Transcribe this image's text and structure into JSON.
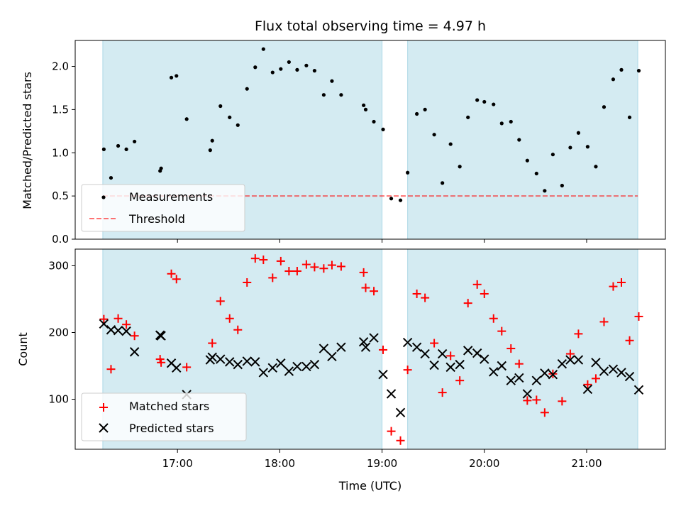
{
  "figure": {
    "title": "Flux total observing time = 4.97 h",
    "xlabel": "Time (UTC)"
  },
  "colors": {
    "band": "#add8e6",
    "measurement": "#000000",
    "threshold": "#ff0000",
    "matched": "#ff0000",
    "predicted": "#000000"
  },
  "chart_data": [
    {
      "type": "scatter",
      "panel": "top",
      "ylabel": "Matched/Predicted stars",
      "x_unit": "hours UTC",
      "xlim": [
        16.0,
        21.77
      ],
      "ylim": [
        0.0,
        2.3
      ],
      "yticks": [
        0.0,
        0.5,
        1.0,
        1.5,
        2.0
      ],
      "ytick_labels": [
        "0.0",
        "0.5",
        "1.0",
        "1.5",
        "2.0"
      ],
      "xticks": [
        17,
        18,
        19,
        20,
        21
      ],
      "shaded_intervals": [
        [
          16.27,
          19.0
        ],
        [
          19.25,
          21.5
        ]
      ],
      "legend": {
        "placement": "lower-left",
        "entries": [
          "Measurements",
          "Threshold"
        ]
      },
      "threshold": {
        "name": "Threshold",
        "y": 0.5,
        "style": "dashed"
      },
      "series": [
        {
          "name": "Measurements",
          "marker": "dot",
          "points": [
            [
              16.28,
              1.04
            ],
            [
              16.35,
              0.71
            ],
            [
              16.42,
              1.08
            ],
            [
              16.5,
              1.04
            ],
            [
              16.58,
              1.13
            ],
            [
              16.83,
              0.79
            ],
            [
              16.84,
              0.82
            ],
            [
              16.94,
              1.87
            ],
            [
              16.99,
              1.89
            ],
            [
              17.09,
              1.39
            ],
            [
              17.32,
              1.03
            ],
            [
              17.34,
              1.14
            ],
            [
              17.42,
              1.54
            ],
            [
              17.51,
              1.41
            ],
            [
              17.59,
              1.32
            ],
            [
              17.68,
              1.74
            ],
            [
              17.76,
              1.99
            ],
            [
              17.84,
              2.2
            ],
            [
              17.93,
              1.93
            ],
            [
              18.01,
              1.97
            ],
            [
              18.09,
              2.05
            ],
            [
              18.17,
              1.96
            ],
            [
              18.26,
              2.01
            ],
            [
              18.34,
              1.95
            ],
            [
              18.43,
              1.67
            ],
            [
              18.51,
              1.83
            ],
            [
              18.6,
              1.67
            ],
            [
              18.82,
              1.55
            ],
            [
              18.84,
              1.5
            ],
            [
              18.92,
              1.36
            ],
            [
              19.01,
              1.27
            ],
            [
              19.09,
              0.47
            ],
            [
              19.18,
              0.45
            ],
            [
              19.25,
              0.77
            ],
            [
              19.34,
              1.45
            ],
            [
              19.42,
              1.5
            ],
            [
              19.51,
              1.21
            ],
            [
              19.59,
              0.65
            ],
            [
              19.67,
              1.1
            ],
            [
              19.76,
              0.84
            ],
            [
              19.84,
              1.41
            ],
            [
              19.93,
              1.61
            ],
            [
              20.0,
              1.59
            ],
            [
              20.09,
              1.56
            ],
            [
              20.17,
              1.34
            ],
            [
              20.26,
              1.36
            ],
            [
              20.34,
              1.15
            ],
            [
              20.42,
              0.91
            ],
            [
              20.51,
              0.76
            ],
            [
              20.59,
              0.56
            ],
            [
              20.67,
              0.98
            ],
            [
              20.76,
              0.62
            ],
            [
              20.84,
              1.06
            ],
            [
              20.92,
              1.23
            ],
            [
              21.01,
              1.07
            ],
            [
              21.09,
              0.84
            ],
            [
              21.17,
              1.53
            ],
            [
              21.26,
              1.85
            ],
            [
              21.34,
              1.96
            ],
            [
              21.42,
              1.41
            ],
            [
              21.51,
              1.95
            ]
          ]
        }
      ]
    },
    {
      "type": "scatter",
      "panel": "bottom",
      "ylabel": "Count",
      "x_unit": "hours UTC",
      "xlim": [
        16.0,
        21.77
      ],
      "ylim": [
        25,
        325
      ],
      "yticks": [
        100,
        200,
        300
      ],
      "ytick_labels": [
        "100",
        "200",
        "300"
      ],
      "xticks": [
        17,
        18,
        19,
        20,
        21
      ],
      "xtick_labels": [
        "17:00",
        "18:00",
        "19:00",
        "20:00",
        "21:00"
      ],
      "shaded_intervals": [
        [
          16.27,
          19.0
        ],
        [
          19.25,
          21.5
        ]
      ],
      "legend": {
        "placement": "lower-left",
        "entries": [
          "Matched stars",
          "Predicted stars"
        ]
      },
      "series": [
        {
          "name": "Matched stars",
          "marker": "plus",
          "points": [
            [
              16.28,
              220
            ],
            [
              16.35,
              145
            ],
            [
              16.42,
              221
            ],
            [
              16.5,
              212
            ],
            [
              16.58,
              195
            ],
            [
              16.83,
              160
            ],
            [
              16.84,
              155
            ],
            [
              16.94,
              288
            ],
            [
              16.99,
              280
            ],
            [
              17.09,
              148
            ],
            [
              17.34,
              184
            ],
            [
              17.42,
              247
            ],
            [
              17.51,
              221
            ],
            [
              17.59,
              204
            ],
            [
              17.68,
              275
            ],
            [
              17.76,
              311
            ],
            [
              17.84,
              309
            ],
            [
              17.93,
              282
            ],
            [
              18.01,
              307
            ],
            [
              18.09,
              292
            ],
            [
              18.17,
              292
            ],
            [
              18.26,
              302
            ],
            [
              18.34,
              298
            ],
            [
              18.43,
              296
            ],
            [
              18.51,
              301
            ],
            [
              18.6,
              299
            ],
            [
              18.82,
              290
            ],
            [
              18.84,
              267
            ],
            [
              18.92,
              262
            ],
            [
              19.01,
              174
            ],
            [
              19.09,
              52
            ],
            [
              19.18,
              38
            ],
            [
              19.25,
              144
            ],
            [
              19.34,
              258
            ],
            [
              19.42,
              252
            ],
            [
              19.51,
              184
            ],
            [
              19.59,
              110
            ],
            [
              19.67,
              165
            ],
            [
              19.76,
              128
            ],
            [
              19.84,
              244
            ],
            [
              19.93,
              272
            ],
            [
              20.0,
              258
            ],
            [
              20.09,
              221
            ],
            [
              20.17,
              202
            ],
            [
              20.26,
              176
            ],
            [
              20.34,
              153
            ],
            [
              20.42,
              98
            ],
            [
              20.51,
              99
            ],
            [
              20.59,
              80
            ],
            [
              20.67,
              138
            ],
            [
              20.76,
              97
            ],
            [
              20.84,
              168
            ],
            [
              20.92,
              198
            ],
            [
              21.01,
              122
            ],
            [
              21.09,
              131
            ],
            [
              21.17,
              216
            ],
            [
              21.26,
              269
            ],
            [
              21.34,
              275
            ],
            [
              21.42,
              188
            ],
            [
              21.51,
              224
            ]
          ]
        },
        {
          "name": "Predicted stars",
          "marker": "x",
          "points": [
            [
              16.28,
              213
            ],
            [
              16.35,
              204
            ],
            [
              16.42,
              203
            ],
            [
              16.5,
              202
            ],
            [
              16.58,
              171
            ],
            [
              16.83,
              196
            ],
            [
              16.84,
              195
            ],
            [
              16.94,
              154
            ],
            [
              16.99,
              147
            ],
            [
              17.09,
              107
            ],
            [
              17.32,
              159
            ],
            [
              17.34,
              163
            ],
            [
              17.42,
              160
            ],
            [
              17.51,
              156
            ],
            [
              17.59,
              152
            ],
            [
              17.68,
              157
            ],
            [
              17.76,
              156
            ],
            [
              17.84,
              140
            ],
            [
              17.93,
              147
            ],
            [
              18.01,
              154
            ],
            [
              18.09,
              142
            ],
            [
              18.17,
              149
            ],
            [
              18.26,
              149
            ],
            [
              18.34,
              152
            ],
            [
              18.43,
              176
            ],
            [
              18.51,
              164
            ],
            [
              18.6,
              178
            ],
            [
              18.82,
              186
            ],
            [
              18.84,
              178
            ],
            [
              18.92,
              192
            ],
            [
              19.01,
              137
            ],
            [
              19.09,
              108
            ],
            [
              19.18,
              80
            ],
            [
              19.25,
              185
            ],
            [
              19.34,
              178
            ],
            [
              19.42,
              168
            ],
            [
              19.51,
              151
            ],
            [
              19.59,
              168
            ],
            [
              19.67,
              148
            ],
            [
              19.76,
              152
            ],
            [
              19.84,
              173
            ],
            [
              19.93,
              169
            ],
            [
              20.0,
              160
            ],
            [
              20.09,
              141
            ],
            [
              20.17,
              150
            ],
            [
              20.26,
              128
            ],
            [
              20.34,
              132
            ],
            [
              20.42,
              108
            ],
            [
              20.51,
              128
            ],
            [
              20.59,
              139
            ],
            [
              20.67,
              137
            ],
            [
              20.76,
              153
            ],
            [
              20.84,
              159
            ],
            [
              20.92,
              159
            ],
            [
              21.01,
              115
            ],
            [
              21.09,
              155
            ],
            [
              21.17,
              142
            ],
            [
              21.26,
              145
            ],
            [
              21.34,
              140
            ],
            [
              21.42,
              134
            ],
            [
              21.51,
              114
            ]
          ]
        }
      ]
    }
  ]
}
